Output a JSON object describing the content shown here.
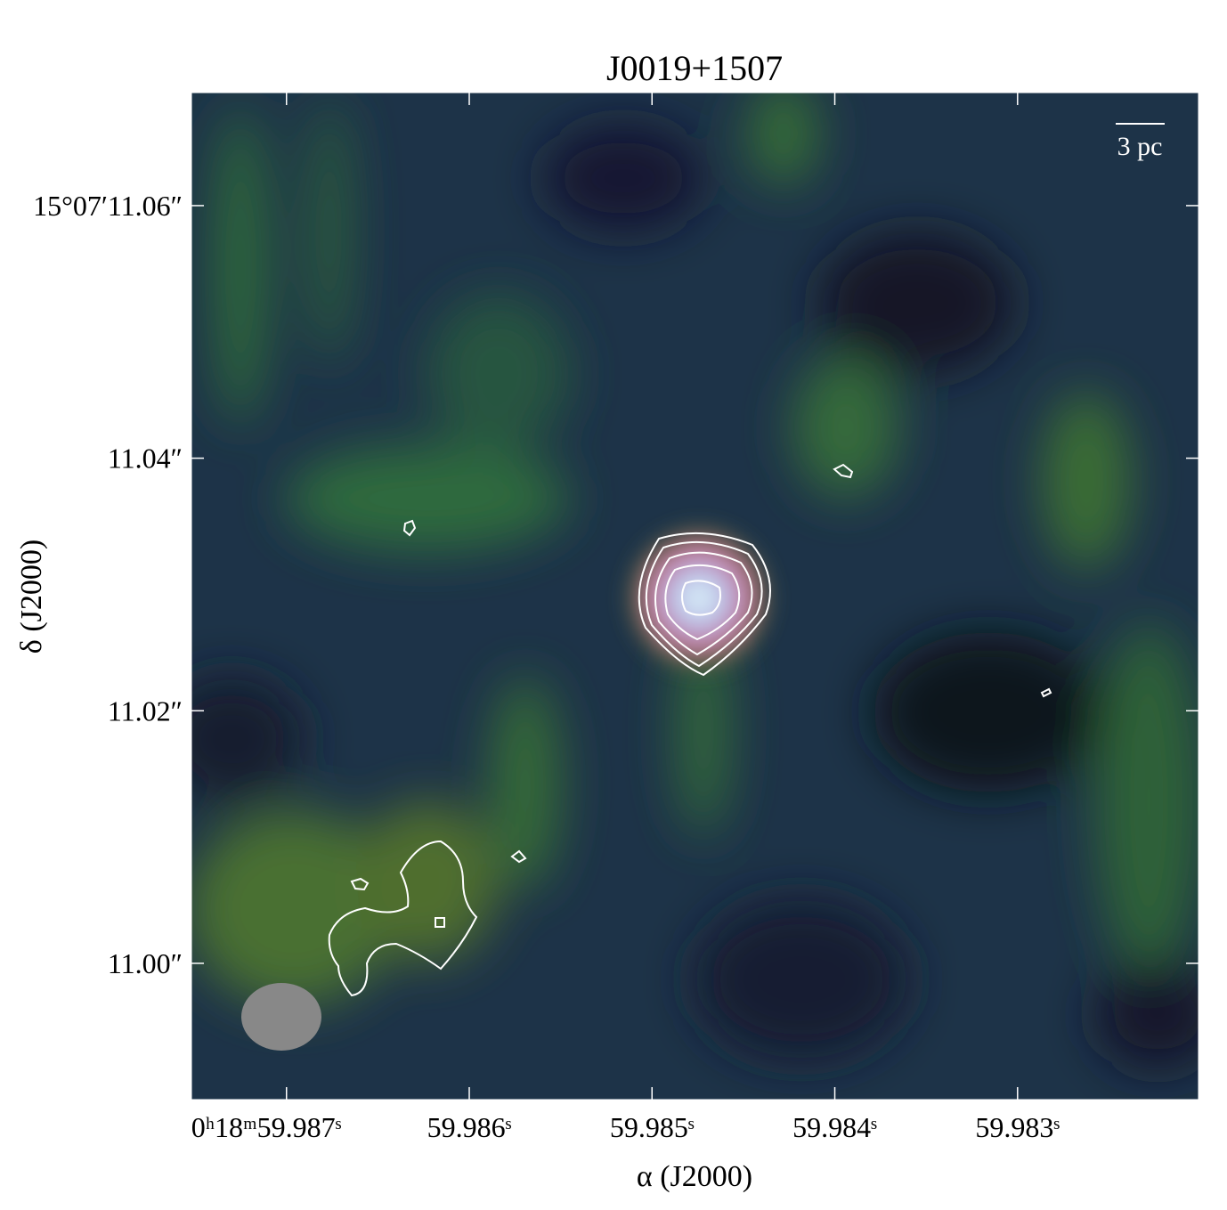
{
  "chart_data": {
    "type": "image",
    "title": "J0019+1507",
    "xlabel": "α (J2000)",
    "ylabel": "δ (J2000)",
    "xlim": [
      59.98752,
      59.98201
    ],
    "ylim": [
      10.98921,
      11.06895
    ],
    "xticks": [
      {
        "value": 59.987,
        "label": "0ʰ18ᵐ59.987ˢ"
      },
      {
        "value": 59.986,
        "label": "59.986ˢ"
      },
      {
        "value": 59.985,
        "label": "59.985ˢ"
      },
      {
        "value": 59.984,
        "label": "59.984ˢ"
      },
      {
        "value": 59.983,
        "label": "59.983ˢ"
      }
    ],
    "yticks": [
      {
        "value": 11.0,
        "label": "11.00″"
      },
      {
        "value": 11.02,
        "label": "11.02″"
      },
      {
        "value": 11.04,
        "label": "11.04″"
      },
      {
        "value": 11.06,
        "label": "15°07′11.06″"
      }
    ],
    "scale_bar_label": "3 pc"
  }
}
